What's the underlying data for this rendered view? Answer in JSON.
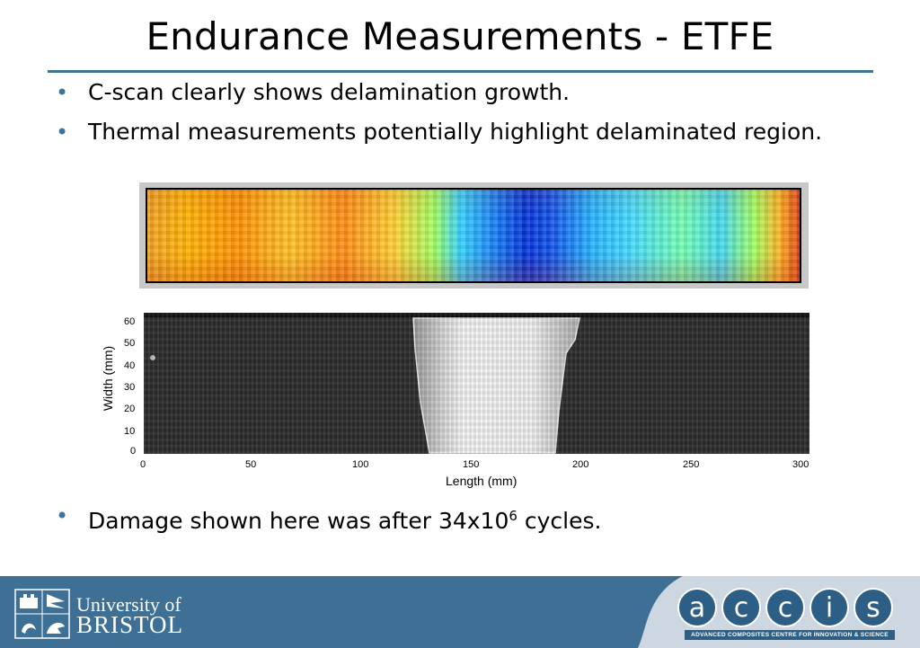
{
  "slide": {
    "title": "Endurance Measurements - ETFE",
    "bullets": [
      "C-scan clearly shows delamination growth.",
      "Thermal measurements potentially highlight delaminated region."
    ],
    "final_bullet": {
      "text": "Damage shown here was after 34x10",
      "sup": "6",
      "suffix": " cycles."
    }
  },
  "figure": {
    "y_axis_label": "Width (mm)",
    "x_axis_label": "Length (mm)",
    "y_ticks": [
      "60",
      "50",
      "40",
      "30",
      "20",
      "10",
      "0"
    ],
    "x_ticks": [
      "0",
      "50",
      "100",
      "150",
      "200",
      "250",
      "300"
    ]
  },
  "footer": {
    "university_line1": "University of",
    "university_line2": "BRISTOL",
    "accis_letters": [
      "a",
      "c",
      "c",
      "i",
      "s"
    ],
    "accis_subtitle": "ADVANCED COMPOSITES CENTRE FOR INNOVATION & SCIENCE",
    "colors": {
      "band": "#3e6f94",
      "accent": "#3f7398",
      "accis_panel": "#ccd7e2"
    }
  }
}
